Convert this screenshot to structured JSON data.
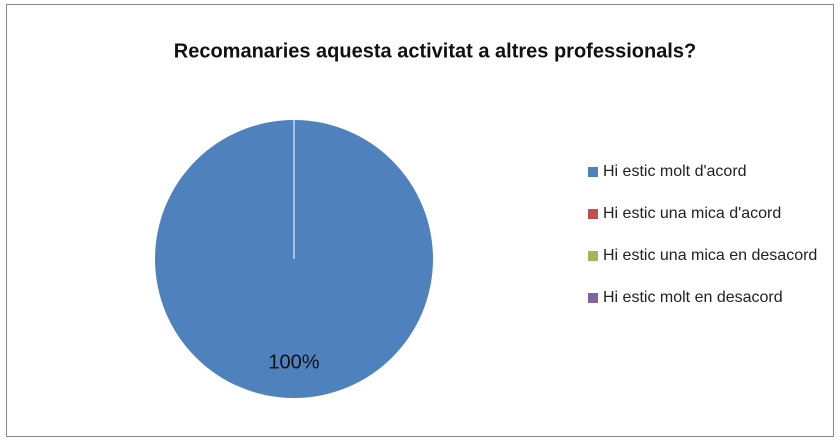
{
  "chart_data": {
    "type": "pie",
    "title": "Recomanaries aquesta activitat a altres professionals?",
    "categories": [
      "Hi estic molt d'acord",
      "Hi estic una mica d'acord",
      "Hi estic una mica en desacord",
      "Hi estic molt en desacord"
    ],
    "values": [
      100,
      0,
      0,
      0
    ],
    "value_labels": [
      "100%",
      null,
      null,
      null
    ],
    "colors": [
      "#4f81bd",
      "#c0504d",
      "#9bbb59",
      "#8064a2"
    ],
    "legend": "right"
  }
}
